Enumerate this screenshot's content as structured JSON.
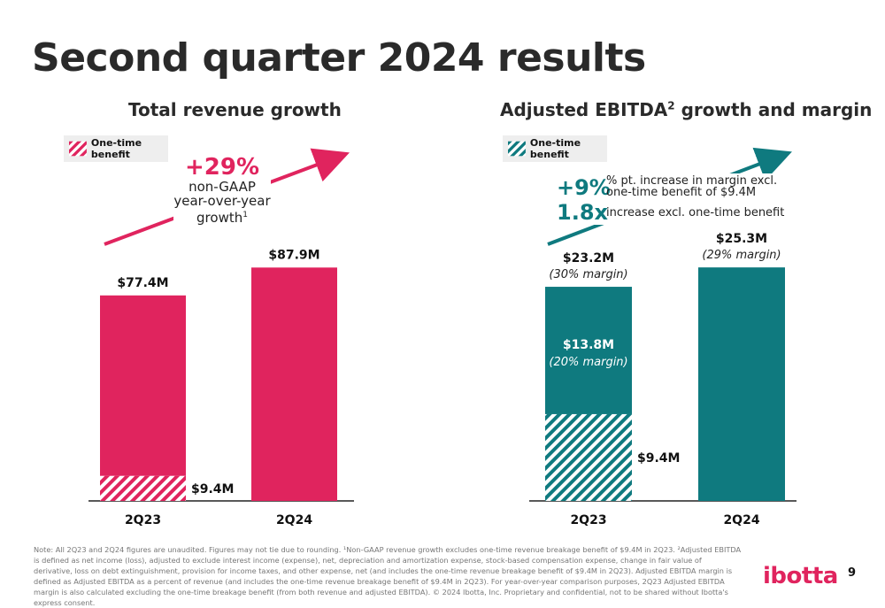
{
  "title": "Second quarter 2024 results",
  "colors": {
    "pink": "#e0245e",
    "teal": "#0f7a7f",
    "text": "#2a2a2a"
  },
  "left": {
    "title": "Total revenue growth",
    "legend": "One-time benefit",
    "growth_pct": "+29%",
    "growth_text": [
      "non-GAAP",
      "year-over-year",
      "growth"
    ],
    "growth_sup": "1"
  },
  "right": {
    "title": "Adjusted EBITDA",
    "title_sup": "2",
    "title_rest": " growth and margin",
    "legend": "One-time benefit",
    "pt_increase": "+9%",
    "pt_text_1": "% pt. increase in margin excl.",
    "pt_text_2": "one-time benefit of $9.4M",
    "multiple": "1.8x",
    "multiple_text": "increase excl. one-time benefit"
  },
  "chart_data": [
    {
      "type": "bar",
      "title": "Total revenue growth",
      "categories": [
        "2Q23",
        "2Q24"
      ],
      "total_labels": [
        "$77.4M",
        "$87.9M"
      ],
      "values": [
        77.4,
        87.9
      ],
      "one_time_benefit": [
        9.4,
        0
      ],
      "one_time_label": "$9.4M",
      "ylim": [
        0,
        95
      ],
      "legend": [
        "One-time benefit"
      ]
    },
    {
      "type": "bar",
      "title": "Adjusted EBITDA2 growth and margin",
      "categories": [
        "2Q23",
        "2Q24"
      ],
      "total_labels": [
        "$23.2M",
        "$25.3M"
      ],
      "margin_labels": [
        "(30% margin)",
        "(29% margin)"
      ],
      "values": [
        23.2,
        25.3
      ],
      "one_time_benefit": [
        9.4,
        0
      ],
      "one_time_label": "$9.4M",
      "excl_label": "$13.8M",
      "excl_margin_label": "(20% margin)",
      "ylim": [
        0,
        28
      ],
      "legend": [
        "One-time benefit"
      ]
    }
  ],
  "note": "Note: All 2Q23 and 2Q24 figures are unaudited. Figures may not tie due to rounding. ¹Non-GAAP revenue growth excludes one-time revenue breakage benefit of $9.4M in 2Q23. ²Adjusted EBITDA is defined as net income (loss), adjusted to exclude interest income (expense), net, depreciation and amortization expense, stock-based compensation expense, change in fair value of derivative, loss on debt extinguishment, provision for income taxes, and other expense, net (and includes the one-time revenue breakage benefit of $9.4M in 2Q23). Adjusted EBITDA margin is defined as Adjusted EBITDA as a percent of revenue (and includes the one-time revenue breakage benefit of $9.4M in 2Q23). For year-over-year comparison purposes, 2Q23 Adjusted EBITDA margin is also calculated excluding the one-time breakage benefit (from both revenue and adjusted EBITDA). © 2024 Ibotta, Inc. Proprietary and confidential, not to be shared without Ibotta's express consent.",
  "logo": "ibotta",
  "page_number": "9"
}
